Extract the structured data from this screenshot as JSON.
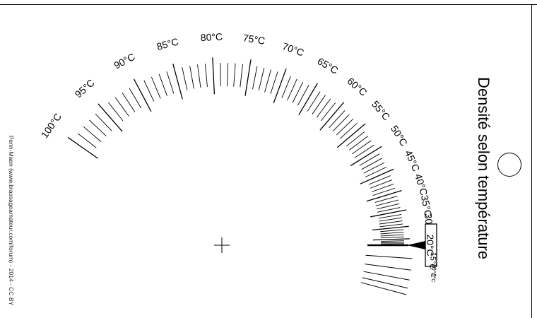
{
  "title": "Densité selon température",
  "credit": "Penn-Maen (www.brassageamateur.com/forum) - 2014 - CC BY",
  "scale": {
    "unit": "°C",
    "labels": [
      "100°C",
      "95°C",
      "90°C",
      "85°C",
      "80°C",
      "75°C",
      "70°C",
      "65°C",
      "60°C",
      "55°C",
      "50°C",
      "45°C",
      "40°C",
      "35°C",
      "30°C",
      "25°C",
      "20°C",
      "15°C",
      "10°C",
      "5°C"
    ],
    "highlighted_label": "20°C"
  },
  "colors": {
    "ink": "#000000",
    "background": "#ffffff"
  }
}
